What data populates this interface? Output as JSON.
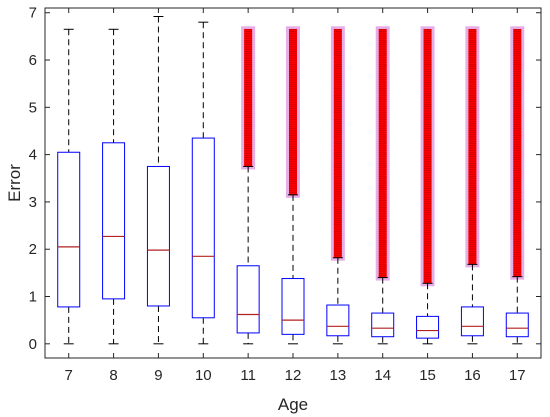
{
  "chart_data": {
    "type": "box",
    "xlabel": "Age",
    "ylabel": "Error",
    "categories": [
      "7",
      "8",
      "9",
      "10",
      "11",
      "12",
      "13",
      "14",
      "15",
      "16",
      "17"
    ],
    "ylim": [
      -0.3,
      7.1
    ],
    "yticks": [
      0,
      1,
      2,
      3,
      4,
      5,
      6,
      7
    ],
    "grid": false,
    "box_color": "#0000ff",
    "median_color": "#b22222",
    "whisker_color": "#000000",
    "outlier_color": "#ff0000",
    "outlier_shadow_color": "#e2a0e2",
    "boxes": [
      {
        "category": "7",
        "min": 0.0,
        "q1": 0.78,
        "median": 2.05,
        "q3": 4.05,
        "max": 6.65,
        "outliers": null
      },
      {
        "category": "8",
        "min": 0.0,
        "q1": 0.95,
        "median": 2.27,
        "q3": 4.25,
        "max": 6.65,
        "outliers": null
      },
      {
        "category": "9",
        "min": 0.0,
        "q1": 0.8,
        "median": 1.98,
        "q3": 3.75,
        "max": 6.92,
        "outliers": null
      },
      {
        "category": "10",
        "min": 0.0,
        "q1": 0.55,
        "median": 1.85,
        "q3": 4.35,
        "max": 6.8,
        "outliers": null
      },
      {
        "category": "11",
        "min": 0.0,
        "q1": 0.23,
        "median": 0.62,
        "q3": 1.65,
        "max": 3.75,
        "outliers": [
          3.75,
          6.65
        ]
      },
      {
        "category": "12",
        "min": 0.0,
        "q1": 0.2,
        "median": 0.5,
        "q3": 1.38,
        "max": 3.15,
        "outliers": [
          3.15,
          6.65
        ]
      },
      {
        "category": "13",
        "min": 0.0,
        "q1": 0.17,
        "median": 0.37,
        "q3": 0.82,
        "max": 1.82,
        "outliers": [
          1.82,
          6.65
        ]
      },
      {
        "category": "14",
        "min": 0.0,
        "q1": 0.15,
        "median": 0.33,
        "q3": 0.65,
        "max": 1.4,
        "outliers": [
          1.4,
          6.65
        ]
      },
      {
        "category": "15",
        "min": 0.0,
        "q1": 0.12,
        "median": 0.28,
        "q3": 0.58,
        "max": 1.28,
        "outliers": [
          1.28,
          6.65
        ]
      },
      {
        "category": "16",
        "min": 0.0,
        "q1": 0.17,
        "median": 0.37,
        "q3": 0.78,
        "max": 1.68,
        "outliers": [
          1.68,
          6.65
        ]
      },
      {
        "category": "17",
        "min": 0.0,
        "q1": 0.15,
        "median": 0.33,
        "q3": 0.65,
        "max": 1.42,
        "outliers": [
          1.42,
          6.65
        ]
      }
    ]
  }
}
